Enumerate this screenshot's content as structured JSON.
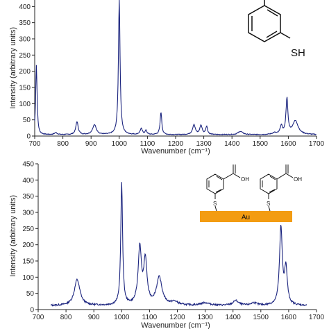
{
  "chart_data": [
    {
      "type": "line",
      "xlabel": "Wavenumber (cm⁻¹)",
      "ylabel": "Intensity (arbitrary units)",
      "xlim": [
        700,
        1700
      ],
      "ylim": [
        0,
        420
      ],
      "xticks": [
        "700",
        "800",
        "900",
        "1000",
        "1100",
        "1200",
        "1300",
        "1400",
        "1500",
        "1600",
        "1700"
      ],
      "yticks": [
        "0",
        "50",
        "100",
        "150",
        "200",
        "250",
        "300",
        "350",
        "400"
      ],
      "color": "#1a237e",
      "series": [
        {
          "baseline": 4,
          "peaks": [
            {
              "x": 706,
              "y": 215,
              "w": 3
            },
            {
              "x": 775,
              "y": 6,
              "w": 6
            },
            {
              "x": 850,
              "y": 40,
              "w": 5
            },
            {
              "x": 912,
              "y": 30,
              "w": 8
            },
            {
              "x": 1000,
              "y": 420,
              "w": 3.5
            },
            {
              "x": 1078,
              "y": 18,
              "w": 5
            },
            {
              "x": 1095,
              "y": 12,
              "w": 4
            },
            {
              "x": 1148,
              "y": 70,
              "w": 3.5
            },
            {
              "x": 1265,
              "y": 30,
              "w": 6
            },
            {
              "x": 1290,
              "y": 28,
              "w": 5
            },
            {
              "x": 1310,
              "y": 25,
              "w": 4
            },
            {
              "x": 1430,
              "y": 10,
              "w": 10
            },
            {
              "x": 1550,
              "y": 5,
              "w": 8
            },
            {
              "x": 1575,
              "y": 25,
              "w": 5
            },
            {
              "x": 1595,
              "y": 110,
              "w": 4
            },
            {
              "x": 1625,
              "y": 42,
              "w": 12
            }
          ]
        }
      ]
    },
    {
      "type": "line",
      "xlabel": "Wavenumber (cm⁻¹)",
      "ylabel": "Intensity (arbitrary units)",
      "xlim": [
        700,
        1700
      ],
      "ylim": [
        0,
        450
      ],
      "xticks": [
        "700",
        "800",
        "900",
        "1000",
        "1100",
        "1200",
        "1300",
        "1400",
        "1500",
        "1600",
        "1700"
      ],
      "yticks": [
        "0",
        "50",
        "100",
        "150",
        "200",
        "250",
        "300",
        "350",
        "400",
        "450"
      ],
      "color": "#1a237e",
      "series": [
        {
          "baseline": 12,
          "peaks": [
            {
              "x": 840,
              "y": 80,
              "w": 12
            },
            {
              "x": 1000,
              "y": 375,
              "w": 4
            },
            {
              "x": 1065,
              "y": 175,
              "w": 7
            },
            {
              "x": 1085,
              "y": 135,
              "w": 7
            },
            {
              "x": 1135,
              "y": 85,
              "w": 12
            },
            {
              "x": 1190,
              "y": 10,
              "w": 15
            },
            {
              "x": 1300,
              "y": 8,
              "w": 20
            },
            {
              "x": 1410,
              "y": 15,
              "w": 12
            },
            {
              "x": 1475,
              "y": 8,
              "w": 12
            },
            {
              "x": 1572,
              "y": 238,
              "w": 6
            },
            {
              "x": 1590,
              "y": 110,
              "w": 6
            }
          ]
        }
      ]
    }
  ],
  "molecules": {
    "top": {
      "substituent": "SH"
    },
    "bottom": {
      "acid_label_1": "OH",
      "acid_label_2": "OH",
      "sulfur_1": "S",
      "sulfur_2": "S",
      "substrate_label": "Au",
      "substrate_color": "#f39c12"
    }
  }
}
